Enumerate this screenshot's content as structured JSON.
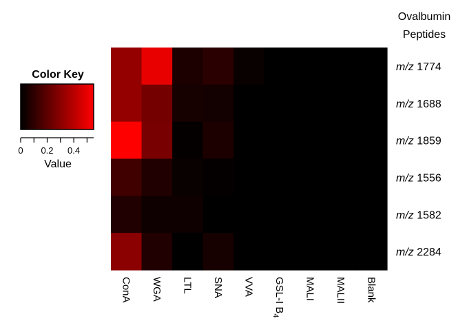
{
  "chart_data": {
    "type": "heatmap",
    "row_header": [
      "Ovalbumin",
      "Peptides"
    ],
    "rows": [
      {
        "prefix": "m/z",
        "value": "1774"
      },
      {
        "prefix": "m/z",
        "value": "1688"
      },
      {
        "prefix": "m/z",
        "value": "1859"
      },
      {
        "prefix": "m/z",
        "value": "1556"
      },
      {
        "prefix": "m/z",
        "value": "1582"
      },
      {
        "prefix": "m/z",
        "value": "2284"
      }
    ],
    "columns": [
      {
        "label": "ConA"
      },
      {
        "label": "WGA"
      },
      {
        "label": "LTL"
      },
      {
        "label": "SNA"
      },
      {
        "label": "VVA"
      },
      {
        "label": "GSL-I B",
        "subscript": "4"
      },
      {
        "label": "MALI"
      },
      {
        "label": "MALII"
      },
      {
        "label": "Blank"
      }
    ],
    "values": [
      [
        0.32,
        0.5,
        0.06,
        0.09,
        0.02,
        0.0,
        0.0,
        0.0,
        0.0
      ],
      [
        0.32,
        0.25,
        0.05,
        0.04,
        0.0,
        0.0,
        0.0,
        0.0,
        0.0
      ],
      [
        0.55,
        0.26,
        0.01,
        0.06,
        0.0,
        0.0,
        0.0,
        0.0,
        0.0
      ],
      [
        0.14,
        0.07,
        0.02,
        0.01,
        0.0,
        0.0,
        0.0,
        0.0,
        0.0
      ],
      [
        0.07,
        0.03,
        0.03,
        0.0,
        0.0,
        0.0,
        0.0,
        0.0,
        0.0
      ],
      [
        0.3,
        0.07,
        0.0,
        0.05,
        0.0,
        0.0,
        0.0,
        0.0,
        0.0
      ]
    ],
    "color_scale": {
      "low": "#000000",
      "high": "#ff0000",
      "min": 0,
      "max": 0.55
    },
    "color_key": {
      "title": "Color Key",
      "label": "Value",
      "ticks": [
        {
          "value": 0,
          "label": "0"
        },
        {
          "value": 0.2,
          "label": "0.2"
        },
        {
          "value": 0.4,
          "label": "0.4"
        }
      ]
    }
  }
}
